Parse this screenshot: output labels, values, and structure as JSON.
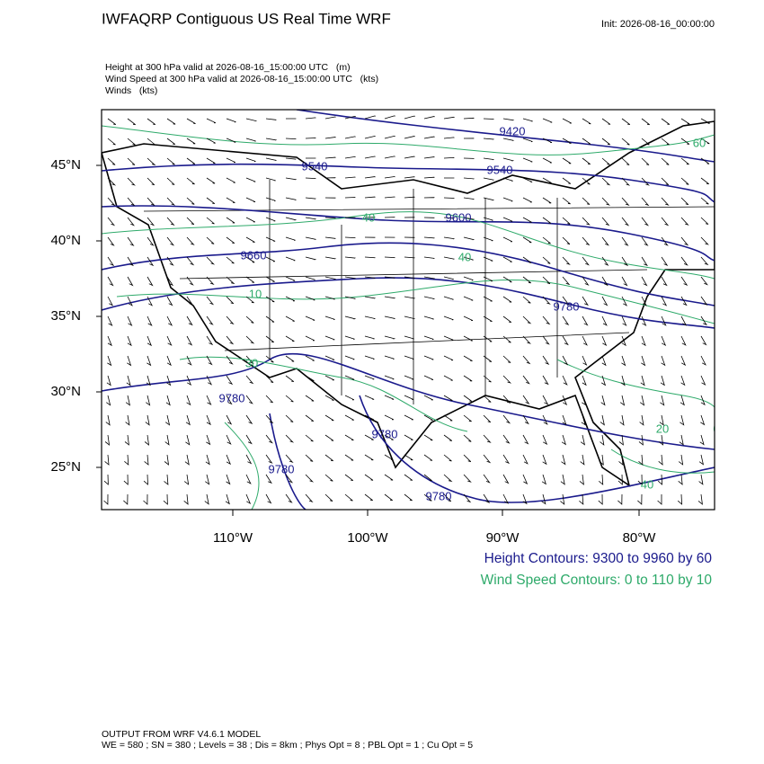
{
  "header": {
    "title": "IWFAQRP Contiguous US Real Time WRF",
    "init": "Init: 2026-08-16_00:00:00"
  },
  "fields": [
    "Height at 300 hPa valid at 2026-08-16_15:00:00 UTC   (m)",
    "Wind Speed at 300 hPa valid at 2026-08-16_15:00:00 UTC   (kts)",
    "Winds   (kts)"
  ],
  "map": {
    "lat_labels": [
      "45°N",
      "40°N",
      "35°N",
      "30°N",
      "25°N"
    ],
    "lon_labels": [
      "110°W",
      "100°W",
      "90°W",
      "80°W"
    ],
    "height_labels": [
      "9420",
      "9540",
      "9540",
      "9600",
      "9660",
      "9780",
      "9780",
      "9780",
      "9780",
      "9780"
    ],
    "speed_labels": [
      "40",
      "40",
      "10",
      "30",
      "20",
      "40",
      "60"
    ]
  },
  "legend": [
    "Height Contours: 9300 to 9960 by 60",
    "Wind Speed Contours: 0 to 110 by 10"
  ],
  "footer": [
    "OUTPUT FROM WRF V4.6.1 MODEL",
    "WE = 580 ; SN = 380 ; Levels = 38 ; Dis = 8km ; Phys Opt = 8 ; PBL Opt = 1 ; Cu Opt = 5"
  ]
}
